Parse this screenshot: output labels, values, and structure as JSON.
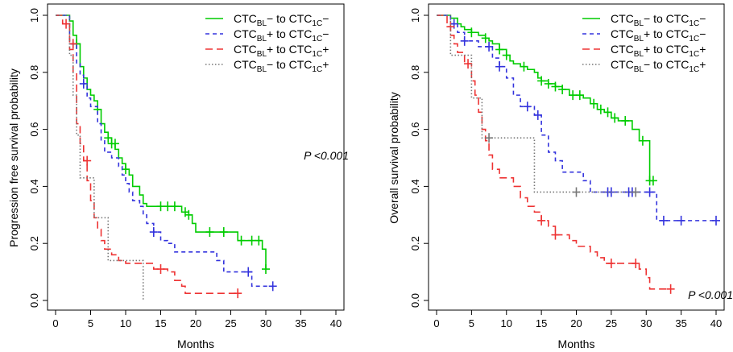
{
  "chart_data": [
    {
      "type": "line",
      "title": "",
      "xlabel": "Months",
      "ylabel": "Progression free survival probability",
      "xlim": [
        0,
        40
      ],
      "ylim": [
        0,
        1
      ],
      "xticks": [
        0,
        5,
        10,
        15,
        20,
        25,
        30,
        35,
        40
      ],
      "yticks": [
        0.0,
        0.2,
        0.4,
        0.6,
        0.8,
        1.0
      ],
      "annotation": "P <0.001",
      "legend_placement": "top-right",
      "grid": false,
      "series": [
        {
          "name_parts": [
            "CTC",
            "BL",
            "−  to CTC",
            "1C",
            "−"
          ],
          "color": "#00cc00",
          "dash": "solid",
          "steps": [
            [
              0,
              1.0
            ],
            [
              2,
              0.98
            ],
            [
              2.5,
              0.93
            ],
            [
              3,
              0.9
            ],
            [
              3.5,
              0.82
            ],
            [
              4,
              0.78
            ],
            [
              4.5,
              0.74
            ],
            [
              5,
              0.72
            ],
            [
              5.5,
              0.7
            ],
            [
              6,
              0.67
            ],
            [
              6.5,
              0.62
            ],
            [
              7,
              0.59
            ],
            [
              7.5,
              0.57
            ],
            [
              8,
              0.55
            ],
            [
              8.5,
              0.53
            ],
            [
              9,
              0.5
            ],
            [
              9.5,
              0.48
            ],
            [
              10,
              0.46
            ],
            [
              10.5,
              0.44
            ],
            [
              11,
              0.4
            ],
            [
              12,
              0.37
            ],
            [
              12.5,
              0.34
            ],
            [
              13,
              0.33
            ],
            [
              18,
              0.31
            ],
            [
              19,
              0.3
            ],
            [
              19.5,
              0.27
            ],
            [
              20,
              0.24
            ],
            [
              26,
              0.21
            ],
            [
              29.5,
              0.18
            ],
            [
              30,
              0.11
            ]
          ],
          "end": 30,
          "censors": [
            [
              3,
              0.9
            ],
            [
              6,
              0.67
            ],
            [
              7.5,
              0.57
            ],
            [
              8,
              0.55
            ],
            [
              8.5,
              0.55
            ],
            [
              10,
              0.46
            ],
            [
              15,
              0.33
            ],
            [
              16,
              0.33
            ],
            [
              17,
              0.33
            ],
            [
              18.5,
              0.31
            ],
            [
              19,
              0.3
            ],
            [
              22,
              0.24
            ],
            [
              24,
              0.24
            ],
            [
              26.5,
              0.21
            ],
            [
              28,
              0.21
            ],
            [
              29,
              0.21
            ],
            [
              30,
              0.11
            ]
          ]
        },
        {
          "name_parts": [
            "CTC",
            "BL",
            "+ to CTC",
            "1C",
            "−"
          ],
          "color": "#3333dd",
          "dash": "5,4",
          "steps": [
            [
              0,
              1.0
            ],
            [
              2,
              0.9
            ],
            [
              3,
              0.83
            ],
            [
              3.5,
              0.79
            ],
            [
              4,
              0.76
            ],
            [
              4.5,
              0.71
            ],
            [
              5,
              0.68
            ],
            [
              6,
              0.62
            ],
            [
              6.5,
              0.56
            ],
            [
              7,
              0.52
            ],
            [
              8,
              0.5
            ],
            [
              9,
              0.47
            ],
            [
              9.5,
              0.44
            ],
            [
              10,
              0.41
            ],
            [
              10.5,
              0.38
            ],
            [
              11,
              0.35
            ],
            [
              12,
              0.33
            ],
            [
              12.5,
              0.3
            ],
            [
              13,
              0.27
            ],
            [
              14,
              0.24
            ],
            [
              15,
              0.21
            ],
            [
              16,
              0.2
            ],
            [
              17,
              0.17
            ],
            [
              23,
              0.14
            ],
            [
              24,
              0.1
            ],
            [
              28,
              0.05
            ]
          ],
          "end": 31,
          "censors": [
            [
              2.5,
              0.9
            ],
            [
              4,
              0.76
            ],
            [
              14,
              0.24
            ],
            [
              27.5,
              0.1
            ],
            [
              31,
              0.05
            ]
          ]
        },
        {
          "name_parts": [
            "CTC",
            "BL",
            "+ to CTC",
            "1C",
            "+"
          ],
          "color": "#ee3333",
          "dash": "9,5",
          "steps": [
            [
              0,
              1.0
            ],
            [
              1,
              0.97
            ],
            [
              2,
              0.88
            ],
            [
              2.5,
              0.8
            ],
            [
              3,
              0.62
            ],
            [
              3.5,
              0.55
            ],
            [
              4,
              0.49
            ],
            [
              4.5,
              0.42
            ],
            [
              5,
              0.35
            ],
            [
              5.5,
              0.29
            ],
            [
              6,
              0.25
            ],
            [
              6.5,
              0.21
            ],
            [
              7,
              0.18
            ],
            [
              8,
              0.16
            ],
            [
              9,
              0.14
            ],
            [
              10,
              0.13
            ],
            [
              14,
              0.11
            ],
            [
              16,
              0.1
            ],
            [
              17,
              0.07
            ],
            [
              18,
              0.05
            ],
            [
              18.5,
              0.025
            ]
          ],
          "end": 26,
          "censors": [
            [
              1.5,
              0.97
            ],
            [
              2.5,
              0.9
            ],
            [
              4.5,
              0.49
            ],
            [
              15,
              0.11
            ],
            [
              26,
              0.025
            ]
          ]
        },
        {
          "name_parts": [
            "CTC",
            "BL",
            "−  to CTC",
            "1C",
            "+"
          ],
          "color": "#777777",
          "dash": "1.5,2.5",
          "steps": [
            [
              0,
              1.0
            ],
            [
              2,
              0.86
            ],
            [
              2.5,
              0.72
            ],
            [
              3,
              0.58
            ],
            [
              3.5,
              0.43
            ],
            [
              5.5,
              0.29
            ],
            [
              7.5,
              0.14
            ],
            [
              12.5,
              0.0
            ]
          ],
          "end": 12.5,
          "censors": []
        }
      ]
    },
    {
      "type": "line",
      "title": "",
      "xlabel": "Months",
      "ylabel": "Overall survival probability",
      "xlim": [
        0,
        40
      ],
      "ylim": [
        0,
        1
      ],
      "xticks": [
        0,
        5,
        10,
        15,
        20,
        25,
        30,
        35,
        40
      ],
      "yticks": [
        0.0,
        0.2,
        0.4,
        0.6,
        0.8,
        1.0
      ],
      "annotation": "P <0.001",
      "legend_placement": "top-right",
      "grid": false,
      "series": [
        {
          "name_parts": [
            "CTC",
            "BL",
            "−  to CTC",
            "1C",
            "−"
          ],
          "color": "#00cc00",
          "dash": "solid",
          "steps": [
            [
              0,
              1.0
            ],
            [
              2,
              0.99
            ],
            [
              3,
              0.97
            ],
            [
              3.5,
              0.96
            ],
            [
              4,
              0.95
            ],
            [
              5,
              0.94
            ],
            [
              6,
              0.93
            ],
            [
              7,
              0.92
            ],
            [
              7.5,
              0.91
            ],
            [
              8,
              0.9
            ],
            [
              9,
              0.88
            ],
            [
              10,
              0.86
            ],
            [
              10.5,
              0.84
            ],
            [
              11,
              0.83
            ],
            [
              12,
              0.82
            ],
            [
              13,
              0.81
            ],
            [
              14,
              0.8
            ],
            [
              14.5,
              0.78
            ],
            [
              15,
              0.77
            ],
            [
              16,
              0.76
            ],
            [
              17,
              0.75
            ],
            [
              18,
              0.74
            ],
            [
              19,
              0.72
            ],
            [
              21,
              0.71
            ],
            [
              22,
              0.69
            ],
            [
              23,
              0.67
            ],
            [
              24,
              0.66
            ],
            [
              25,
              0.64
            ],
            [
              26,
              0.63
            ],
            [
              28,
              0.6
            ],
            [
              29,
              0.56
            ],
            [
              30.5,
              0.42
            ]
          ],
          "end": 31,
          "censors": [
            [
              5,
              0.94
            ],
            [
              7,
              0.92
            ],
            [
              9,
              0.88
            ],
            [
              10,
              0.86
            ],
            [
              12.5,
              0.82
            ],
            [
              15,
              0.77
            ],
            [
              16,
              0.76
            ],
            [
              17,
              0.75
            ],
            [
              18,
              0.74
            ],
            [
              19.5,
              0.72
            ],
            [
              20.5,
              0.72
            ],
            [
              22.5,
              0.69
            ],
            [
              23.5,
              0.67
            ],
            [
              24.5,
              0.66
            ],
            [
              25.5,
              0.64
            ],
            [
              27,
              0.63
            ],
            [
              29.5,
              0.56
            ],
            [
              30.5,
              0.42
            ],
            [
              31,
              0.42
            ]
          ]
        },
        {
          "name_parts": [
            "CTC",
            "BL",
            "+ to CTC",
            "1C",
            "−"
          ],
          "color": "#3333dd",
          "dash": "5,4",
          "steps": [
            [
              0,
              1.0
            ],
            [
              2,
              0.97
            ],
            [
              3,
              0.94
            ],
            [
              4,
              0.91
            ],
            [
              6,
              0.89
            ],
            [
              8,
              0.85
            ],
            [
              9,
              0.82
            ],
            [
              10,
              0.78
            ],
            [
              11,
              0.72
            ],
            [
              12,
              0.68
            ],
            [
              14,
              0.65
            ],
            [
              15,
              0.58
            ],
            [
              16,
              0.52
            ],
            [
              17,
              0.49
            ],
            [
              18,
              0.45
            ],
            [
              21,
              0.42
            ],
            [
              22,
              0.38
            ],
            [
              31.5,
              0.28
            ]
          ],
          "end": 40,
          "censors": [
            [
              2.5,
              0.97
            ],
            [
              4,
              0.91
            ],
            [
              7.5,
              0.89
            ],
            [
              9,
              0.82
            ],
            [
              13,
              0.68
            ],
            [
              14.5,
              0.65
            ],
            [
              24.5,
              0.38
            ],
            [
              25,
              0.38
            ],
            [
              27.5,
              0.38
            ],
            [
              28,
              0.38
            ],
            [
              30.5,
              0.38
            ],
            [
              32.5,
              0.28
            ],
            [
              35,
              0.28
            ],
            [
              40,
              0.28
            ]
          ]
        },
        {
          "name_parts": [
            "CTC",
            "BL",
            "+ to CTC",
            "1C",
            "+"
          ],
          "color": "#ee3333",
          "dash": "9,5",
          "steps": [
            [
              0,
              1.0
            ],
            [
              1.5,
              0.96
            ],
            [
              2,
              0.93
            ],
            [
              2.5,
              0.9
            ],
            [
              3,
              0.87
            ],
            [
              4,
              0.83
            ],
            [
              5,
              0.77
            ],
            [
              5.5,
              0.72
            ],
            [
              6,
              0.66
            ],
            [
              6.5,
              0.6
            ],
            [
              7,
              0.56
            ],
            [
              7.5,
              0.51
            ],
            [
              8,
              0.46
            ],
            [
              9,
              0.43
            ],
            [
              11,
              0.4
            ],
            [
              12,
              0.36
            ],
            [
              13,
              0.33
            ],
            [
              14,
              0.31
            ],
            [
              15,
              0.28
            ],
            [
              16,
              0.26
            ],
            [
              17,
              0.23
            ],
            [
              19,
              0.21
            ],
            [
              20,
              0.19
            ],
            [
              22,
              0.17
            ],
            [
              23,
              0.15
            ],
            [
              24,
              0.13
            ],
            [
              29,
              0.11
            ],
            [
              30,
              0.08
            ],
            [
              30.5,
              0.04
            ]
          ],
          "end": 33.5,
          "censors": [
            [
              2,
              0.96
            ],
            [
              4.5,
              0.83
            ],
            [
              15,
              0.28
            ],
            [
              17,
              0.23
            ],
            [
              25,
              0.13
            ],
            [
              28.5,
              0.13
            ],
            [
              33.5,
              0.04
            ]
          ]
        },
        {
          "name_parts": [
            "CTC",
            "BL",
            "−  to CTC",
            "1C",
            "+"
          ],
          "color": "#777777",
          "dash": "1.5,2.5",
          "steps": [
            [
              0,
              1.0
            ],
            [
              2,
              0.86
            ],
            [
              5,
              0.71
            ],
            [
              6.5,
              0.57
            ],
            [
              14,
              0.38
            ]
          ],
          "end": 28.5,
          "censors": [
            [
              7.5,
              0.57
            ],
            [
              20,
              0.38
            ],
            [
              28.5,
              0.38
            ]
          ]
        }
      ]
    }
  ]
}
